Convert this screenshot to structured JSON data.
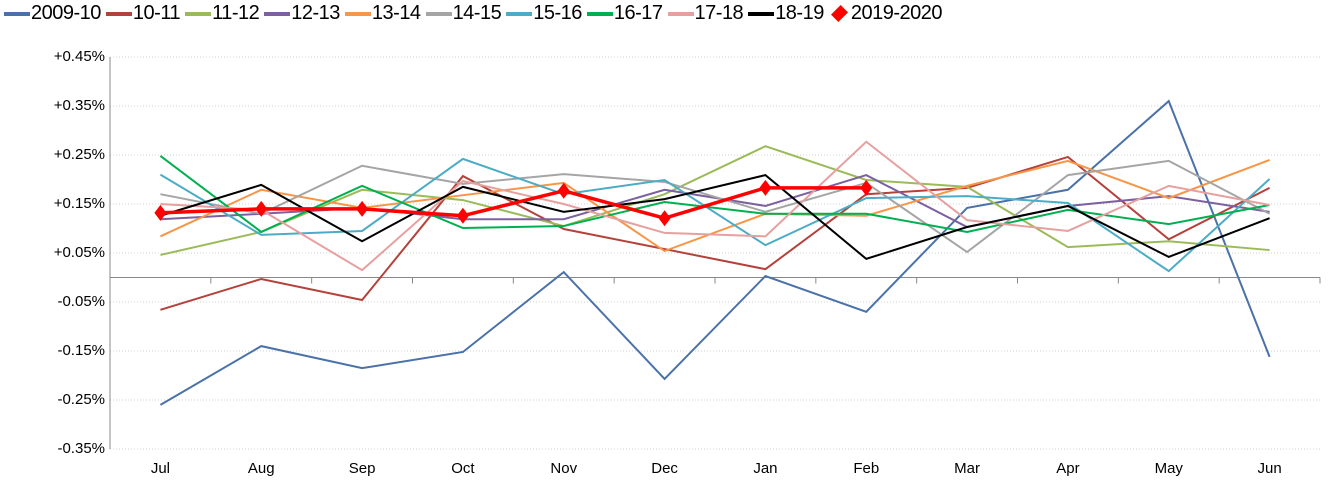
{
  "chart_data": {
    "type": "line",
    "categories": [
      "Jul",
      "Aug",
      "Sep",
      "Oct",
      "Nov",
      "Dec",
      "Jan",
      "Feb",
      "Mar",
      "Apr",
      "May",
      "Jun"
    ],
    "ylim": [
      -0.35,
      0.45
    ],
    "yticks": [
      {
        "value": 0.45,
        "label": "+0.45%"
      },
      {
        "value": 0.35,
        "label": "+0.35%"
      },
      {
        "value": 0.25,
        "label": "+0.25%"
      },
      {
        "value": 0.15,
        "label": "+0.15%"
      },
      {
        "value": 0.05,
        "label": "+0.05%"
      },
      {
        "value": -0.05,
        "label": "-0.05%"
      },
      {
        "value": -0.15,
        "label": "-0.15%"
      },
      {
        "value": -0.25,
        "label": "-0.25%"
      },
      {
        "value": -0.35,
        "label": "-0.35%"
      }
    ],
    "grid": true,
    "series": [
      {
        "name": "2009-10",
        "color": "#4a72a8",
        "values": [
          -0.26,
          -0.14,
          -0.185,
          -0.152,
          0.011,
          -0.207,
          0.003,
          -0.07,
          0.142,
          0.179,
          0.36,
          -0.162
        ]
      },
      {
        "name": "10-11",
        "color": "#b5413b",
        "values": [
          -0.066,
          -0.003,
          -0.046,
          0.207,
          0.099,
          0.058,
          0.017,
          0.17,
          0.183,
          0.246,
          0.078,
          0.183
        ]
      },
      {
        "name": "11-12",
        "color": "#9bbb59",
        "values": [
          0.046,
          0.093,
          0.179,
          0.158,
          0.105,
          0.17,
          0.268,
          0.199,
          0.185,
          0.062,
          0.074,
          0.056
        ]
      },
      {
        "name": "12-13",
        "color": "#7d60a0",
        "values": [
          0.119,
          0.13,
          0.142,
          0.119,
          0.119,
          0.179,
          0.146,
          0.209,
          0.103,
          0.146,
          0.166,
          0.134
        ]
      },
      {
        "name": "13-14",
        "color": "#f79646",
        "values": [
          0.084,
          0.179,
          0.142,
          0.168,
          0.193,
          0.054,
          0.13,
          0.126,
          0.187,
          0.238,
          0.162,
          0.24
        ]
      },
      {
        "name": "14-15",
        "color": "#a5a5a5",
        "values": [
          0.17,
          0.13,
          0.228,
          0.191,
          0.211,
          0.195,
          0.134,
          0.193,
          0.052,
          0.209,
          0.238,
          0.13
        ]
      },
      {
        "name": "15-16",
        "color": "#4bacc6",
        "values": [
          0.21,
          0.087,
          0.095,
          0.242,
          0.17,
          0.199,
          0.066,
          0.162,
          0.166,
          0.152,
          0.013,
          0.201
        ]
      },
      {
        "name": "16-17",
        "color": "#00b050",
        "values": [
          0.248,
          0.093,
          0.187,
          0.101,
          0.105,
          0.154,
          0.13,
          0.13,
          0.093,
          0.138,
          0.109,
          0.148
        ]
      },
      {
        "name": "17-18",
        "color": "#e6a0a0",
        "values": [
          0.15,
          0.138,
          0.015,
          0.197,
          0.15,
          0.091,
          0.084,
          0.277,
          0.117,
          0.095,
          0.187,
          0.148
        ]
      },
      {
        "name": "18-19",
        "color": "#000000",
        "values": [
          0.126,
          0.189,
          0.074,
          0.185,
          0.134,
          0.16,
          0.209,
          0.038,
          0.103,
          0.146,
          0.042,
          0.121
        ]
      },
      {
        "name": "2019-2020",
        "color": "#ff0000",
        "marker": "diamond",
        "values": [
          0.132,
          0.14,
          0.14,
          0.126,
          0.177,
          0.121,
          0.183,
          0.183,
          null,
          null,
          null,
          null
        ]
      }
    ]
  }
}
